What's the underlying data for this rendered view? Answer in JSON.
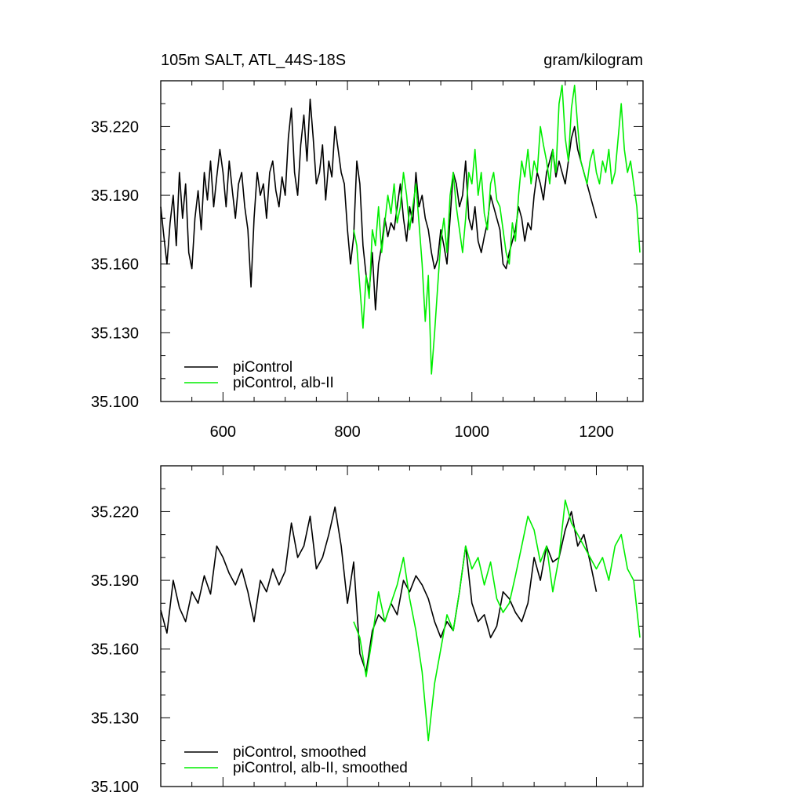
{
  "figure": {
    "title_left": "105m SALT, ATL_44S-18S",
    "title_right": "gram/kilogram"
  },
  "chart_data": [
    {
      "type": "line",
      "xlim": [
        500,
        1275
      ],
      "ylim": [
        35.1,
        35.24
      ],
      "x_ticks": [
        "600",
        "800",
        "1000",
        "1200"
      ],
      "y_ticks": [
        "35.100",
        "35.130",
        "35.160",
        "35.190",
        "35.220"
      ],
      "legend_position": "bottom-left",
      "series": [
        {
          "name": "piControl",
          "color": "#000000",
          "x": [
            500,
            505,
            510,
            515,
            520,
            525,
            530,
            535,
            540,
            545,
            550,
            555,
            560,
            565,
            570,
            575,
            580,
            585,
            590,
            595,
            600,
            605,
            610,
            615,
            620,
            625,
            630,
            635,
            640,
            645,
            650,
            655,
            660,
            665,
            670,
            675,
            680,
            685,
            690,
            695,
            700,
            705,
            710,
            715,
            720,
            725,
            730,
            735,
            740,
            745,
            750,
            755,
            760,
            765,
            770,
            775,
            780,
            785,
            790,
            795,
            800,
            805,
            810,
            815,
            820,
            825,
            830,
            835,
            840,
            845,
            850,
            855,
            860,
            865,
            870,
            875,
            880,
            885,
            890,
            895,
            900,
            905,
            910,
            915,
            920,
            925,
            930,
            935,
            940,
            945,
            950,
            955,
            960,
            965,
            970,
            975,
            980,
            985,
            990,
            995,
            1000,
            1005,
            1010,
            1015,
            1020,
            1025,
            1030,
            1035,
            1040,
            1045,
            1050,
            1055,
            1060,
            1065,
            1070,
            1075,
            1080,
            1085,
            1090,
            1095,
            1100,
            1105,
            1110,
            1115,
            1120,
            1125,
            1130,
            1135,
            1140,
            1145,
            1150,
            1155,
            1160,
            1165,
            1170,
            1175,
            1180,
            1185,
            1190,
            1195,
            1200
          ],
          "y": [
            35.185,
            35.172,
            35.16,
            35.178,
            35.19,
            35.168,
            35.2,
            35.18,
            35.195,
            35.165,
            35.158,
            35.18,
            35.192,
            35.175,
            35.2,
            35.188,
            35.205,
            35.185,
            35.198,
            35.21,
            35.2,
            35.185,
            35.205,
            35.192,
            35.18,
            35.195,
            35.2,
            35.185,
            35.175,
            35.15,
            35.18,
            35.2,
            35.19,
            35.195,
            35.18,
            35.2,
            35.205,
            35.192,
            35.185,
            35.198,
            35.19,
            35.215,
            35.228,
            35.2,
            35.19,
            35.212,
            35.225,
            35.205,
            35.232,
            35.215,
            35.195,
            35.2,
            35.212,
            35.188,
            35.205,
            35.198,
            35.22,
            35.21,
            35.2,
            35.195,
            35.175,
            35.16,
            35.172,
            35.205,
            35.195,
            35.168,
            35.155,
            35.148,
            35.165,
            35.14,
            35.16,
            35.168,
            35.18,
            35.172,
            35.178,
            35.175,
            35.185,
            35.195,
            35.18,
            35.17,
            35.185,
            35.178,
            35.2,
            35.185,
            35.19,
            35.18,
            35.175,
            35.165,
            35.158,
            35.162,
            35.175,
            35.168,
            35.16,
            35.18,
            35.2,
            35.195,
            35.185,
            35.19,
            35.205,
            35.18,
            35.175,
            35.185,
            35.17,
            35.165,
            35.172,
            35.178,
            35.19,
            35.185,
            35.18,
            35.175,
            35.16,
            35.158,
            35.165,
            35.17,
            35.175,
            35.185,
            35.18,
            35.17,
            35.178,
            35.175,
            35.19,
            35.2,
            35.195,
            35.188,
            35.2,
            35.205,
            35.21,
            35.198,
            35.205,
            35.2,
            35.195,
            35.205,
            35.215,
            35.22,
            35.21,
            35.205,
            35.2,
            35.195,
            35.19,
            35.185,
            35.18
          ]
        },
        {
          "name": "piControl, alb-II",
          "color": "#00ee00",
          "x": [
            810,
            815,
            820,
            825,
            830,
            835,
            840,
            845,
            850,
            855,
            860,
            865,
            870,
            875,
            880,
            885,
            890,
            895,
            900,
            905,
            910,
            915,
            920,
            925,
            930,
            935,
            940,
            945,
            950,
            955,
            960,
            965,
            970,
            975,
            980,
            985,
            990,
            995,
            1000,
            1005,
            1010,
            1015,
            1020,
            1025,
            1030,
            1035,
            1040,
            1045,
            1050,
            1055,
            1060,
            1065,
            1070,
            1075,
            1080,
            1085,
            1090,
            1095,
            1100,
            1105,
            1110,
            1115,
            1120,
            1125,
            1130,
            1135,
            1140,
            1145,
            1150,
            1155,
            1160,
            1165,
            1170,
            1175,
            1180,
            1185,
            1190,
            1195,
            1200,
            1205,
            1210,
            1215,
            1220,
            1225,
            1230,
            1235,
            1240,
            1245,
            1250,
            1255,
            1260,
            1265,
            1270
          ],
          "y": [
            35.175,
            35.168,
            35.15,
            35.132,
            35.155,
            35.145,
            35.175,
            35.168,
            35.185,
            35.165,
            35.178,
            35.19,
            35.182,
            35.195,
            35.178,
            35.185,
            35.2,
            35.19,
            35.175,
            35.185,
            35.195,
            35.178,
            35.16,
            35.135,
            35.155,
            35.112,
            35.13,
            35.15,
            35.17,
            35.18,
            35.165,
            35.19,
            35.2,
            35.185,
            35.175,
            35.165,
            35.18,
            35.2,
            35.195,
            35.21,
            35.19,
            35.2,
            35.182,
            35.175,
            35.195,
            35.2,
            35.188,
            35.185,
            35.175,
            35.165,
            35.16,
            35.178,
            35.17,
            35.19,
            35.205,
            35.198,
            35.21,
            35.195,
            35.205,
            35.2,
            35.22,
            35.212,
            35.205,
            35.195,
            35.21,
            35.2,
            35.23,
            35.238,
            35.215,
            35.205,
            35.228,
            35.238,
            35.22,
            35.205,
            35.2,
            35.195,
            35.205,
            35.21,
            35.2,
            35.195,
            35.205,
            35.2,
            35.21,
            35.195,
            35.2,
            35.215,
            35.23,
            35.21,
            35.2,
            35.205,
            35.195,
            35.185,
            35.165
          ]
        }
      ]
    },
    {
      "type": "line",
      "xlim": [
        500,
        1275
      ],
      "ylim": [
        35.1,
        35.24
      ],
      "x_ticks": [],
      "y_ticks": [
        "35.100",
        "35.130",
        "35.160",
        "35.190",
        "35.220"
      ],
      "legend_position": "bottom-left",
      "series": [
        {
          "name": "piControl, smoothed",
          "color": "#000000",
          "x": [
            500,
            510,
            520,
            530,
            540,
            550,
            560,
            570,
            580,
            590,
            600,
            610,
            620,
            630,
            640,
            650,
            660,
            670,
            680,
            690,
            700,
            710,
            720,
            730,
            740,
            750,
            760,
            770,
            780,
            790,
            800,
            810,
            820,
            830,
            840,
            850,
            860,
            870,
            880,
            890,
            900,
            910,
            920,
            930,
            940,
            950,
            960,
            970,
            980,
            990,
            1000,
            1010,
            1020,
            1030,
            1040,
            1050,
            1060,
            1070,
            1080,
            1090,
            1100,
            1110,
            1120,
            1130,
            1140,
            1150,
            1160,
            1170,
            1180,
            1190,
            1200
          ],
          "y": [
            35.177,
            35.167,
            35.19,
            35.178,
            35.172,
            35.185,
            35.18,
            35.192,
            35.184,
            35.205,
            35.2,
            35.193,
            35.188,
            35.195,
            35.185,
            35.172,
            35.19,
            35.185,
            35.195,
            35.188,
            35.194,
            35.215,
            35.2,
            35.205,
            35.218,
            35.195,
            35.2,
            35.21,
            35.222,
            35.205,
            35.18,
            35.198,
            35.158,
            35.15,
            35.168,
            35.175,
            35.172,
            35.18,
            35.175,
            35.19,
            35.185,
            35.192,
            35.188,
            35.182,
            35.172,
            35.165,
            35.172,
            35.168,
            35.185,
            35.205,
            35.18,
            35.172,
            35.175,
            35.165,
            35.17,
            35.185,
            35.182,
            35.176,
            35.172,
            35.18,
            35.2,
            35.19,
            35.205,
            35.198,
            35.2,
            35.212,
            35.22,
            35.205,
            35.21,
            35.198,
            35.185
          ]
        },
        {
          "name": "piControl, alb-II, smoothed",
          "color": "#00ee00",
          "x": [
            810,
            820,
            830,
            840,
            850,
            860,
            870,
            880,
            890,
            900,
            910,
            920,
            930,
            940,
            950,
            960,
            970,
            980,
            990,
            1000,
            1010,
            1020,
            1030,
            1040,
            1050,
            1060,
            1070,
            1080,
            1090,
            1100,
            1110,
            1120,
            1130,
            1140,
            1150,
            1160,
            1170,
            1180,
            1190,
            1200,
            1210,
            1220,
            1230,
            1240,
            1250,
            1260,
            1270
          ],
          "y": [
            35.172,
            35.165,
            35.148,
            35.165,
            35.185,
            35.172,
            35.18,
            35.188,
            35.2,
            35.182,
            35.168,
            35.15,
            35.12,
            35.145,
            35.16,
            35.175,
            35.168,
            35.185,
            35.205,
            35.195,
            35.2,
            35.188,
            35.198,
            35.182,
            35.176,
            35.18,
            35.192,
            35.205,
            35.218,
            35.212,
            35.198,
            35.205,
            35.185,
            35.2,
            35.225,
            35.215,
            35.21,
            35.205,
            35.2,
            35.195,
            35.2,
            35.19,
            35.205,
            35.21,
            35.195,
            35.19,
            35.165
          ]
        }
      ]
    }
  ]
}
